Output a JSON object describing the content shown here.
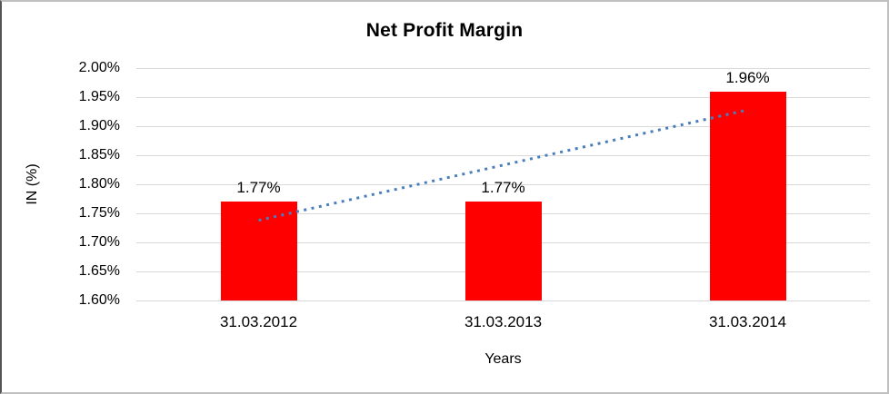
{
  "chart_data": {
    "type": "bar",
    "title": "Net Profit Margin",
    "xlabel": "Years",
    "ylabel": "IN (%)",
    "categories": [
      "31.03.2012",
      "31.03.2013",
      "31.03.2014"
    ],
    "values": [
      1.77,
      1.77,
      1.96
    ],
    "value_labels": [
      "1.77%",
      "1.77%",
      "1.96%"
    ],
    "ylim": [
      1.6,
      2.0
    ],
    "ytick_step": 0.05,
    "ytick_labels": [
      "2.00%",
      "1.95%",
      "1.90%",
      "1.85%",
      "1.80%",
      "1.75%",
      "1.70%",
      "1.65%",
      "1.60%"
    ],
    "grid": true,
    "legend": "none",
    "bar_color": "#ff0000",
    "gridline_color": "#d9d9d9",
    "text_color": "#000000",
    "trendline": {
      "type": "linear",
      "style": "dotted",
      "color": "#4a7ebb",
      "start_value": 1.738,
      "end_value": 1.928
    }
  }
}
